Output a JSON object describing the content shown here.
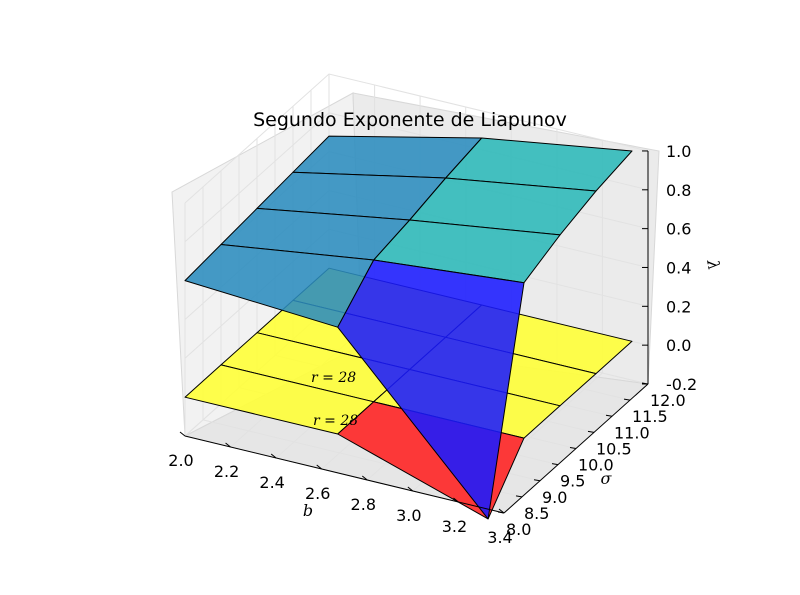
{
  "chart_data": {
    "type": "surface3d",
    "title": "Segundo Exponente de Liapunov",
    "xlabel": "b",
    "ylabel": "σ",
    "zlabel": "λ",
    "xlim": [
      2.0,
      3.4
    ],
    "ylim": [
      8.0,
      12.0
    ],
    "zlim": [
      -0.2,
      1.0
    ],
    "x_ticks": [
      "2.0",
      "2.2",
      "2.4",
      "2.6",
      "2.8",
      "3.0",
      "3.2",
      "3.4"
    ],
    "y_ticks": [
      "8.0",
      "8.5",
      "9.0",
      "9.5",
      "10.0",
      "10.5",
      "11.0",
      "11.5",
      "12.0"
    ],
    "z_ticks": [
      "-0.2",
      "0.0",
      "0.2",
      "0.4",
      "0.6",
      "0.8",
      "1.0"
    ],
    "annotations": [
      "r = 28",
      "r = 28"
    ],
    "series": [
      {
        "surface": "upper",
        "b": [
          2.0,
          2.67,
          3.33
        ],
        "sigma": [
          8.0,
          9.0,
          10.0,
          11.0,
          12.0
        ],
        "lambda": [
          [
            0.6,
            0.62,
            0.64,
            0.66,
            0.68
          ],
          [
            0.55,
            0.73,
            0.77,
            0.82,
            0.86
          ],
          [
            -0.25,
            0.8,
            0.88,
            0.94,
            0.98
          ]
        ],
        "colors": [
          "#2b8cbe",
          "#2bb8b8",
          "#2ce8a0"
        ],
        "dip_color": "#1a1aff"
      },
      {
        "surface": "lower",
        "b": [
          2.0,
          2.67,
          3.33
        ],
        "sigma": [
          8.0,
          9.0,
          10.0,
          11.0,
          12.0
        ],
        "lambda": [
          [
            0.0,
            0.0,
            0.0,
            0.0,
            0.0
          ],
          [
            0.0,
            0.0,
            0.0,
            0.0,
            0.0
          ],
          [
            -0.25,
            0.0,
            0.0,
            0.0,
            0.0
          ]
        ],
        "colors": [
          "#ffff33",
          "#ffff33",
          "#ffff33"
        ],
        "red_color": "#ff2020"
      }
    ]
  }
}
